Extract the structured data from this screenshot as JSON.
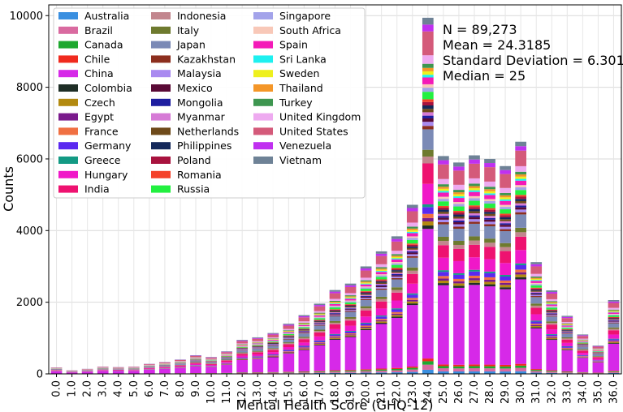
{
  "chart_data": {
    "type": "bar",
    "stacked": true,
    "xlabel": "Mental Health Score (GHQ-12)",
    "ylabel": "Counts",
    "ylim": [
      0,
      10300
    ],
    "yticks": [
      0,
      2000,
      4000,
      6000,
      8000,
      10000
    ],
    "grid": true,
    "legend_position": "top-left",
    "categories": [
      "0.0",
      "1.0",
      "2.0",
      "3.0",
      "4.0",
      "5.0",
      "6.0",
      "7.0",
      "8.0",
      "9.0",
      "10.0",
      "11.0",
      "12.0",
      "13.0",
      "14.0",
      "15.0",
      "16.0",
      "17.0",
      "18.0",
      "19.0",
      "20.0",
      "21.0",
      "22.0",
      "23.0",
      "24.0",
      "25.0",
      "26.0",
      "27.0",
      "28.0",
      "29.0",
      "30.0",
      "31.0",
      "32.0",
      "33.0",
      "34.0",
      "35.0",
      "36.0"
    ],
    "totals": [
      180,
      100,
      140,
      200,
      190,
      200,
      280,
      330,
      400,
      520,
      470,
      630,
      950,
      1020,
      1140,
      1400,
      1640,
      1960,
      2340,
      2520,
      3000,
      3420,
      3840,
      4720,
      9940,
      6080,
      5900,
      6100,
      6000,
      5800,
      6480,
      3120,
      2330,
      1620,
      1100,
      790,
      2060
    ],
    "series": [
      {
        "name": "Australia",
        "color": "#3a8fe0",
        "share": 0.012
      },
      {
        "name": "Brazil",
        "color": "#d96aa0",
        "share": 0.015
      },
      {
        "name": "Canada",
        "color": "#1ea82f",
        "share": 0.01
      },
      {
        "name": "Chile",
        "color": "#f02a1e",
        "share": 0.008
      },
      {
        "name": "China",
        "color": "#d629e8",
        "share": 0.38
      },
      {
        "name": "Colombia",
        "color": "#1e2e26",
        "share": 0.01
      },
      {
        "name": "Czech",
        "color": "#b38a10",
        "share": 0.012
      },
      {
        "name": "Egypt",
        "color": "#7a1a8c",
        "share": 0.01
      },
      {
        "name": "France",
        "color": "#f07042",
        "share": 0.012
      },
      {
        "name": "Germany",
        "color": "#5a28f0",
        "share": 0.02
      },
      {
        "name": "Greece",
        "color": "#139a84",
        "share": 0.008
      },
      {
        "name": "Hungary",
        "color": "#f018c8",
        "share": 0.06
      },
      {
        "name": "India",
        "color": "#ee1270",
        "share": 0.06
      },
      {
        "name": "Indonesia",
        "color": "#c2868e",
        "share": 0.02
      },
      {
        "name": "Italy",
        "color": "#6e7a2e",
        "share": 0.02
      },
      {
        "name": "Japan",
        "color": "#7b8ab6",
        "share": 0.06
      },
      {
        "name": "Kazakhstan",
        "color": "#8c2e1e",
        "share": 0.01
      },
      {
        "name": "Malaysia",
        "color": "#a98af0",
        "share": 0.012
      },
      {
        "name": "Mexico",
        "color": "#5a0a36",
        "share": 0.01
      },
      {
        "name": "Mongolia",
        "color": "#1e1ea0",
        "share": 0.008
      },
      {
        "name": "Myanmar",
        "color": "#d67ad6",
        "share": 0.01
      },
      {
        "name": "Netherlands",
        "color": "#6e4a1a",
        "share": 0.01
      },
      {
        "name": "Philippines",
        "color": "#14285a",
        "share": 0.01
      },
      {
        "name": "Poland",
        "color": "#a8123e",
        "share": 0.01
      },
      {
        "name": "Romania",
        "color": "#f4422a",
        "share": 0.008
      },
      {
        "name": "Russia",
        "color": "#22f040",
        "share": 0.022
      },
      {
        "name": "Singapore",
        "color": "#a3a3ea",
        "share": 0.012
      },
      {
        "name": "South Africa",
        "color": "#f8c8b8",
        "share": 0.01
      },
      {
        "name": "Spain",
        "color": "#f41ab8",
        "share": 0.02
      },
      {
        "name": "Sri Lanka",
        "color": "#1ef0f0",
        "share": 0.008
      },
      {
        "name": "Sweden",
        "color": "#eef01e",
        "share": 0.01
      },
      {
        "name": "Thailand",
        "color": "#f49628",
        "share": 0.01
      },
      {
        "name": "Turkey",
        "color": "#3e9650",
        "share": 0.012
      },
      {
        "name": "United Kingdom",
        "color": "#eeaaf0",
        "share": 0.025
      },
      {
        "name": "United States",
        "color": "#d45a7a",
        "share": 0.07
      },
      {
        "name": "Venezuela",
        "color": "#c030f0",
        "share": 0.02
      },
      {
        "name": "Vietnam",
        "color": "#6e8296",
        "share": 0.02
      }
    ]
  },
  "stats": {
    "n": "N = 89,273",
    "mean": "Mean = 24.3185",
    "sd": "Standard Deviation = 6.301",
    "median": "Median = 25"
  }
}
